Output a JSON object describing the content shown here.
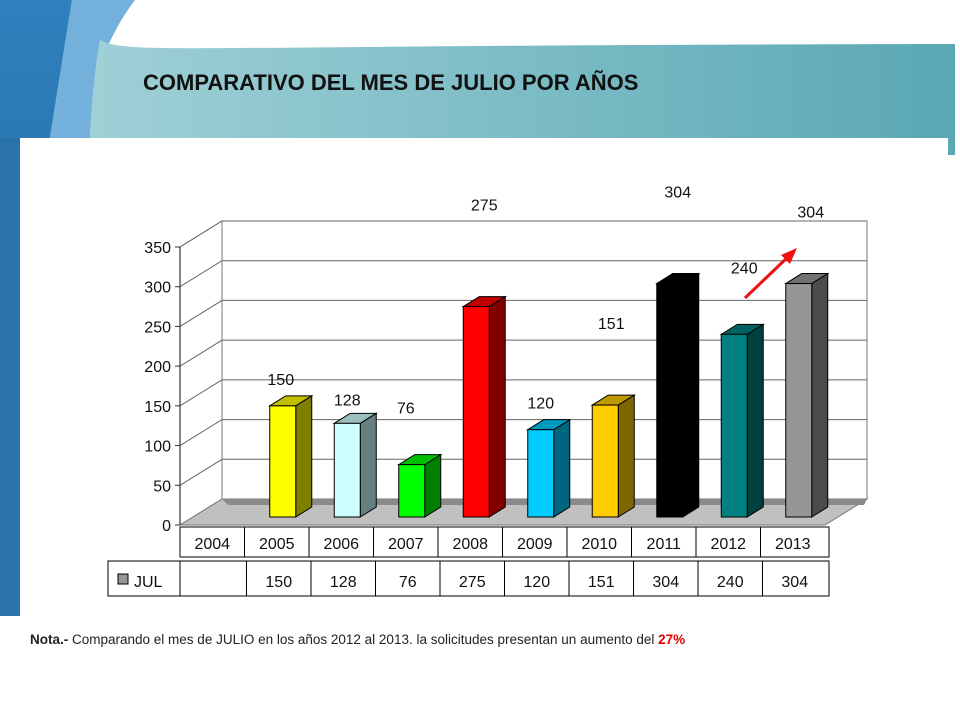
{
  "slide": {
    "title": "COMPARATIVO DEL MES DE JULIO POR AÑOS",
    "note_label": "Nota.-",
    "note_text": " Comparando  el mes de JULIO en los años 2012 al 2013. la solicitudes presentan un aumento del ",
    "note_percent": "27%",
    "accent_colors": {
      "teal": "#7ab8c2",
      "blue": "#3a8fc8",
      "trend_arrow": "#ee1111"
    }
  },
  "chart_data": {
    "type": "bar",
    "title": "",
    "xlabel": "",
    "ylabel": "",
    "ylim": [
      0,
      350
    ],
    "yticks": [
      0,
      50,
      100,
      150,
      200,
      250,
      300,
      350
    ],
    "grid": true,
    "legend": "in-table",
    "table_header": "",
    "categories": [
      "2004",
      "2005",
      "2006",
      "2007",
      "2008",
      "2009",
      "2010",
      "2011",
      "2012",
      "2013"
    ],
    "series": [
      {
        "name": "JUL",
        "values": [
          null,
          150,
          128,
          76,
          275,
          120,
          151,
          304,
          240,
          304
        ],
        "labels": [
          "",
          "150",
          "128",
          "76",
          "275",
          "120",
          "151",
          "304",
          "240",
          "304"
        ],
        "colors": [
          "#000000",
          "#ffff00",
          "#ccffff",
          "#00ff00",
          "#ff0000",
          "#00ccff",
          "#ffcc00",
          "#000000",
          "#008080",
          "#969696"
        ],
        "legend_color": "#969696"
      }
    ]
  }
}
